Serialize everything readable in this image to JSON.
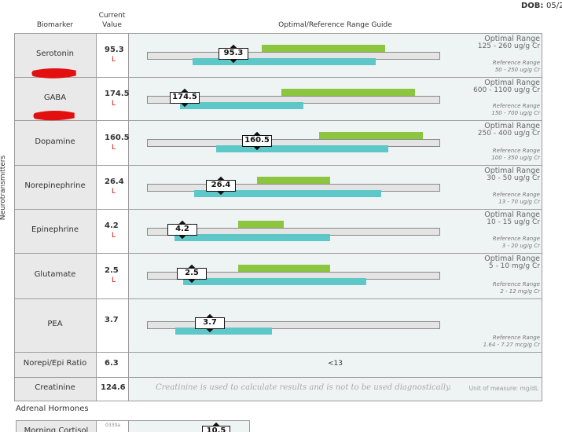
{
  "header": {
    "dob_label": "DOB:",
    "dob_value": "05/2"
  },
  "table": {
    "section": "Neurotransmitters",
    "columns": [
      "Biomarker",
      "Current",
      "Value",
      "Optimal/Reference Range Guide"
    ],
    "rows": [
      {
        "name": "Serotonin",
        "value": 95.3,
        "flag": "L",
        "optimal_label": "Optimal Range",
        "optimal_range": "125 - 260 ug/g Cr",
        "reference_label": "Reference Range",
        "reference_range": "50 - 250 ug/g Cr"
      },
      {
        "name": "GABA",
        "value": 174.5,
        "flag": "L",
        "optimal_label": "Optimal Range",
        "optimal_range": "600 - 1100 ug/g Cr",
        "reference_label": "Reference Range",
        "reference_range": "150 - 700 ug/g Cr"
      },
      {
        "name": "Dopamine",
        "value": 160.5,
        "flag": "L",
        "optimal_label": "Optimal Range",
        "optimal_range": "250 - 400 ug/g Cr",
        "reference_label": "Reference Range",
        "reference_range": "100 - 350 ug/g Cr"
      },
      {
        "name": "Norepinephrine",
        "value": 26.4,
        "flag": "L",
        "optimal_label": "Optimal Range",
        "optimal_range": "30 - 50 ug/g Cr",
        "reference_label": "Reference Range",
        "reference_range": "13 - 70 ug/g Cr"
      },
      {
        "name": "Epinephrine",
        "value": 4.2,
        "flag": "L",
        "optimal_label": "Optimal Range",
        "optimal_range": "10 - 15 ug/g Cr",
        "reference_label": "Reference Range",
        "reference_range": "3 - 20 ug/g Cr"
      },
      {
        "name": "Glutamate",
        "value": 2.5,
        "flag": "L",
        "optimal_label": "Optimal Range",
        "optimal_range": "5 - 10 mg/g Cr",
        "reference_label": "Reference Range",
        "reference_range": "2 - 12 mg/g Cr"
      },
      {
        "name": "PEA",
        "value": 3.7,
        "reference_label": "Reference Range",
        "reference_range": "1.64 - 7.27 mcg/g Cr"
      }
    ],
    "ratio_row": {
      "name": "Norepi/Epi Ratio",
      "value": 6.3,
      "range": "<13"
    },
    "creatinine_row": {
      "name": "Creatinine",
      "value": 124.6,
      "note": "Creatinine is used to calculate results and is not to be used diagnostically.",
      "unit": "Unit of measure: mg/dL"
    }
  },
  "adrenal": {
    "title": "Adrenal Hormones",
    "rows": [
      {
        "name": "Morning Cortisol",
        "time": "0330a",
        "value": 10.5
      }
    ]
  }
}
